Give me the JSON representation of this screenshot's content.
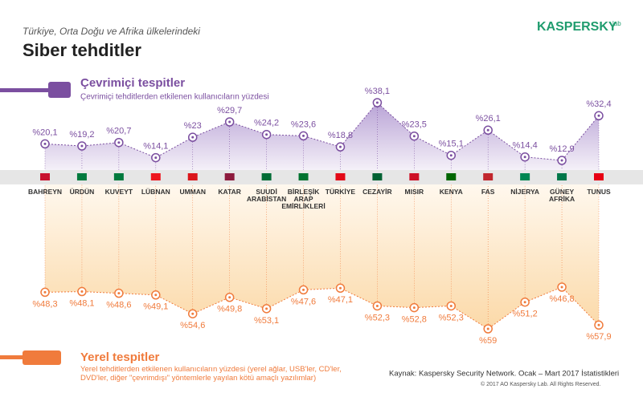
{
  "header": {
    "subtitle": "Türkiye, Orta Doğu ve Afrika ülkelerindeki",
    "title": "Siber tehditler",
    "logo": "KASPERSKY",
    "logo_suffix": "lab"
  },
  "chart_data": {
    "type": "line",
    "categories": [
      "BAHREYN",
      "ÜRDÜN",
      "KUVEYT",
      "LÜBNAN",
      "UMMAN",
      "KATAR",
      "SUUDİ ARABİSTAN",
      "BİRLEŞİK ARAP EMİRLİKLERİ",
      "TÜRKİYE",
      "CEZAYİR",
      "MISIR",
      "KENYA",
      "FAS",
      "NİJERYA",
      "GÜNEY AFRİKA",
      "TUNUS"
    ],
    "series": [
      {
        "name": "Çevrimiçi tespitler",
        "description": "Çevrimiçi tehditlerden etkilenen kullanıcıların yüzdesi",
        "color": "#7b4fa0",
        "values": [
          20.1,
          19.2,
          20.7,
          14.1,
          23,
          29.7,
          24.2,
          23.6,
          18.8,
          38.1,
          23.5,
          15.1,
          26.1,
          14.4,
          12.9,
          32.4
        ],
        "value_labels": [
          "%20,1",
          "%19,2",
          "%20,7",
          "%14,1",
          "%23",
          "%29,7",
          "%24,2",
          "%23,6",
          "%18,8",
          "%38,1",
          "%23,5",
          "%15,1",
          "%26,1",
          "%14,4",
          "%12,9",
          "%32,4"
        ]
      },
      {
        "name": "Yerel tespitler",
        "description": "Yerel tehditlerden etkilenen kullanıcıların yüzdesi (yerel ağlar, USB'ler, CD'ler, DVD'ler, diğer \"çevrimdışı\" yöntemlerle yayılan kötü amaçlı yazılımlar)",
        "color": "#f07b3c",
        "values": [
          48.3,
          48.1,
          48.6,
          49.1,
          54.6,
          49.8,
          53.1,
          47.6,
          47.1,
          52.3,
          52.8,
          52.3,
          59,
          51.2,
          46.8,
          57.9
        ],
        "value_labels": [
          "%48,3",
          "%48,1",
          "%48,6",
          "%49,1",
          "%54,6",
          "%49,8",
          "%53,1",
          "%47,6",
          "%47,1",
          "%52,3",
          "%52,8",
          "%52,3",
          "%59",
          "%51,2",
          "%46,8",
          "%57,9"
        ]
      }
    ]
  },
  "footer": {
    "source": "Kaynak: Kaspersky Security Network. Ocak – Mart 2017 İstatistikleri",
    "copyright": "© 2017 AO Kaspersky Lab. All Rights Reserved."
  }
}
